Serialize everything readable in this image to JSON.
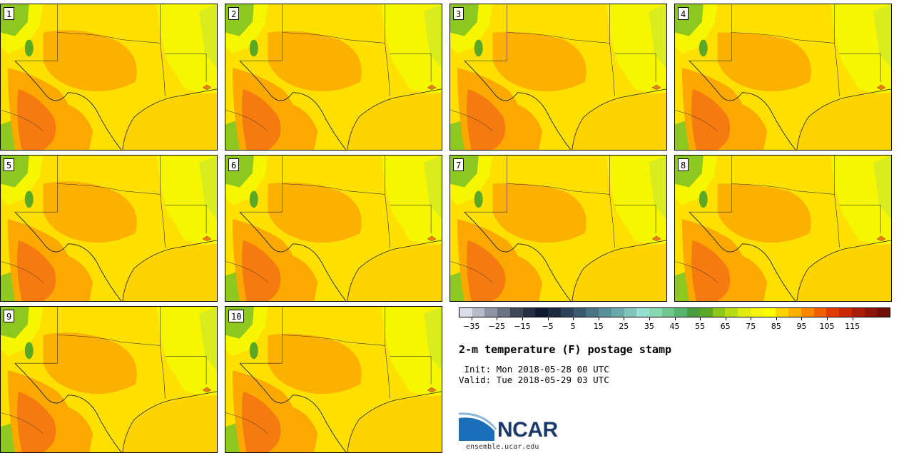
{
  "panels": [
    {
      "label": "1"
    },
    {
      "label": "2"
    },
    {
      "label": "3"
    },
    {
      "label": "4"
    },
    {
      "label": "5"
    },
    {
      "label": "6"
    },
    {
      "label": "7"
    },
    {
      "label": "8"
    },
    {
      "label": "9"
    },
    {
      "label": "10"
    }
  ],
  "colorbar": {
    "colors": [
      "#dcdde8",
      "#b8bcc8",
      "#8e94a4",
      "#6b7284",
      "#3f4858",
      "#243042",
      "#111a2c",
      "#1b2a3e",
      "#2c4458",
      "#3a5a6e",
      "#4a7484",
      "#5a8e98",
      "#6aa8aa",
      "#80c4bc",
      "#96e0d2",
      "#88d8b4",
      "#70c890",
      "#58b46c",
      "#4a9c3c",
      "#5aa826",
      "#8cc81a",
      "#b8dc14",
      "#e0ec10",
      "#f4f40c",
      "#fcfc00",
      "#fcd400",
      "#fcb000",
      "#f88800",
      "#f06000",
      "#e03c00",
      "#c82800",
      "#a81c08",
      "#8c1408",
      "#701008"
    ],
    "tick_labels": [
      "−35",
      "−25",
      "−15",
      "−5",
      "5",
      "15",
      "25",
      "35",
      "45",
      "55",
      "65",
      "75",
      "85",
      "95",
      "105",
      "115"
    ],
    "min": -35,
    "max": 125
  },
  "title": "2-m temperature (F) postage stamp",
  "init_line": " Init: Mon 2018-05-28 00 UTC",
  "valid_line": "Valid: Tue 2018-05-29 03 UTC",
  "logo_text": "NCAR",
  "url": "ensemble.ucar.edu",
  "colors": {
    "land_warm": "#fde000",
    "land_hot": "#fba800",
    "land_hotter": "#f57a10",
    "cool": "#f6f600",
    "green": "#8cc820",
    "gulf": "#fdd400"
  }
}
